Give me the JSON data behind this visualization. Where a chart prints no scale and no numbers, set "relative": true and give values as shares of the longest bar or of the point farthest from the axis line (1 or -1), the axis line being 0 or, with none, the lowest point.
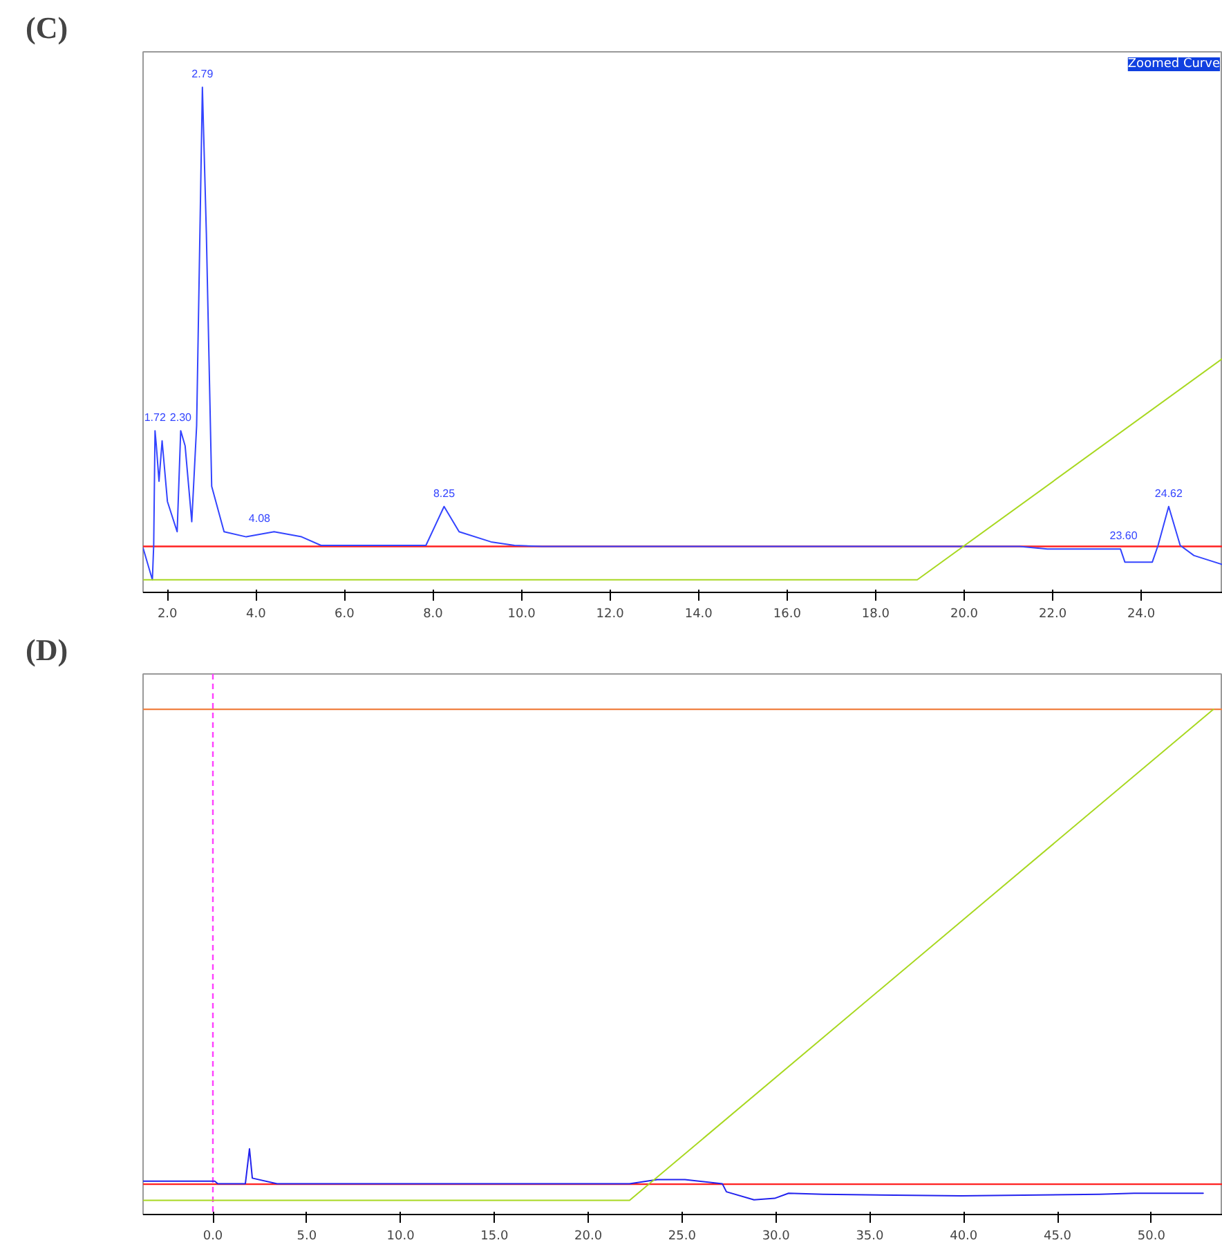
{
  "chart_data": [
    {
      "type": "line",
      "title": "(C)",
      "relative": true,
      "xlim": [
        1.45,
        25.84
      ],
      "xticks": [
        {
          "value": 2,
          "label": "2.0"
        },
        {
          "value": 4,
          "label": "4.0"
        },
        {
          "value": 6,
          "label": "6.0"
        },
        {
          "value": 8,
          "label": "8.0"
        },
        {
          "value": 10,
          "label": "10.0"
        },
        {
          "value": 12,
          "label": "12.0"
        },
        {
          "value": 14,
          "label": "14.0"
        },
        {
          "value": 16,
          "label": "16.0"
        },
        {
          "value": 18,
          "label": "18.0"
        },
        {
          "value": 20,
          "label": "20.0"
        },
        {
          "value": 22,
          "label": "22.0"
        },
        {
          "value": 24,
          "label": "24.0"
        }
      ],
      "series": [
        {
          "color": "#3344ff",
          "x": [
            1.45,
            1.66,
            1.69,
            1.72,
            1.75,
            1.81,
            1.88,
            2.0,
            2.22,
            2.3,
            2.4,
            2.55,
            2.66,
            2.79,
            2.88,
            3.0,
            3.28,
            3.78,
            4.41,
            5.03,
            5.47,
            7.84,
            8.25,
            8.59,
            9.31,
            9.84,
            10.47,
            21.25,
            21.88,
            23.53,
            23.63,
            24.25,
            24.38,
            24.62,
            24.88,
            25.19,
            25.84
          ],
          "values": [
            0.088,
            0.025,
            0.093,
            0.32,
            0.29,
            0.22,
            0.3,
            0.18,
            0.12,
            0.32,
            0.29,
            0.14,
            0.33,
            1.0,
            0.71,
            0.21,
            0.12,
            0.11,
            0.12,
            0.11,
            0.093,
            0.093,
            0.17,
            0.12,
            0.1,
            0.093,
            0.091,
            0.091,
            0.086,
            0.086,
            0.06,
            0.06,
            0.093,
            0.17,
            0.093,
            0.073,
            0.055
          ]
        },
        {
          "color": "#a8d820",
          "x": [
            1.45,
            18.94,
            25.84
          ],
          "values": [
            0.025,
            0.025,
            0.463
          ]
        }
      ],
      "ref_lines": [
        {
          "axis": "y",
          "value": 0.091,
          "color": "#ff2020"
        }
      ],
      "annotations": [
        {
          "text": "1.72",
          "x": 1.72,
          "y": 0.32
        },
        {
          "text": "2.30",
          "x": 2.3,
          "y": 0.32
        },
        {
          "text": "2.79",
          "x": 2.79,
          "y": 1.0
        },
        {
          "text": "4.08",
          "x": 4.08,
          "y": 0.12
        },
        {
          "text": "8.25",
          "x": 8.25,
          "y": 0.17
        },
        {
          "text": "23.60",
          "x": 23.6,
          "y": 0.086
        },
        {
          "text": "24.62",
          "x": 24.62,
          "y": 0.17
        },
        "Zoomed Curve"
      ]
    },
    {
      "type": "line",
      "title": "(D)",
      "relative": true,
      "xlim": [
        -3.72,
        53.8
      ],
      "xticks": [
        {
          "value": 0,
          "label": "0.0"
        },
        {
          "value": 5,
          "label": "5.0"
        },
        {
          "value": 10,
          "label": "10.0"
        },
        {
          "value": 15,
          "label": "15.0"
        },
        {
          "value": 20,
          "label": "20.0"
        },
        {
          "value": 25,
          "label": "25.0"
        },
        {
          "value": 30,
          "label": "30.0"
        },
        {
          "value": 35,
          "label": "35.0"
        },
        {
          "value": 40,
          "label": "40.0"
        },
        {
          "value": 45,
          "label": "45.0"
        },
        {
          "value": 50,
          "label": "50.0"
        }
      ],
      "series": [
        {
          "color": "#2222ee",
          "x": [
            -3.72,
            0.1,
            0.26,
            1.73,
            1.95,
            2.1,
            3.42,
            22.2,
            23.67,
            25.15,
            27.14,
            27.36,
            28.83,
            29.93,
            30.67,
            32.51,
            39.87,
            47.23,
            49.08,
            52.76
          ],
          "values": [
            0.066,
            0.066,
            0.061,
            0.061,
            0.13,
            0.072,
            0.061,
            0.061,
            0.069,
            0.069,
            0.061,
            0.045,
            0.029,
            0.032,
            0.042,
            0.04,
            0.037,
            0.04,
            0.042,
            0.042
          ]
        },
        {
          "color": "#a8d820",
          "x": [
            -3.72,
            22.2,
            53.3
          ],
          "values": [
            0.028,
            0.028,
            1.0
          ]
        }
      ],
      "ref_lines": [
        {
          "axis": "y",
          "value": 0.06,
          "color": "#ff2020"
        },
        {
          "axis": "y",
          "value": 1.0,
          "color": "#f08040"
        },
        {
          "axis": "x",
          "value": 0,
          "color": "#ff40ff",
          "line_style": "dashed"
        }
      ]
    }
  ]
}
